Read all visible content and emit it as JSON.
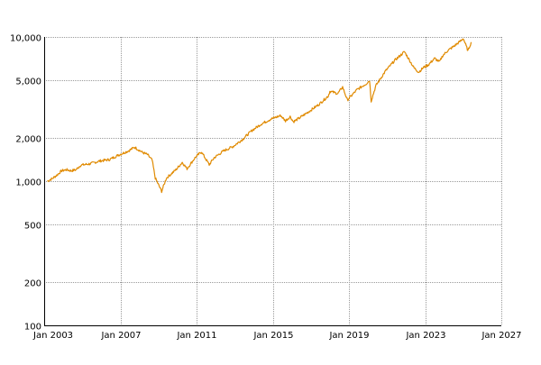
{
  "chart_data": {
    "type": "line",
    "title": "",
    "xlabel": "",
    "ylabel": "",
    "y_scale": "log",
    "xlim": [
      "2003-01",
      "2027-01"
    ],
    "ylim": [
      100,
      10000
    ],
    "grid": true,
    "x_ticks": [
      {
        "label": "Jan 2003",
        "date": "2003-01"
      },
      {
        "label": "Jan 2007",
        "date": "2007-01"
      },
      {
        "label": "Jan 2011",
        "date": "2011-01"
      },
      {
        "label": "Jan 2015",
        "date": "2015-01"
      },
      {
        "label": "Jan 2019",
        "date": "2019-01"
      },
      {
        "label": "Jan 2023",
        "date": "2023-01"
      },
      {
        "label": "Jan 2027",
        "date": "2027-01"
      }
    ],
    "y_ticks": [
      {
        "label": "100",
        "value": 100
      },
      {
        "label": "200",
        "value": 200
      },
      {
        "label": "500",
        "value": 500
      },
      {
        "label": "1,000",
        "value": 1000
      },
      {
        "label": "2,000",
        "value": 2000
      },
      {
        "label": "5,000",
        "value": 5000
      },
      {
        "label": "10,000",
        "value": 10000
      }
    ],
    "series": [
      {
        "color": "#e08a00",
        "x": [
          "2003-03",
          "2003-06",
          "2003-09",
          "2003-12",
          "2004-03",
          "2004-06",
          "2004-09",
          "2004-12",
          "2005-06",
          "2005-12",
          "2006-06",
          "2006-12",
          "2007-06",
          "2007-10",
          "2008-03",
          "2008-06",
          "2008-09",
          "2008-11",
          "2009-03",
          "2009-06",
          "2009-12",
          "2010-04",
          "2010-07",
          "2010-12",
          "2011-04",
          "2011-09",
          "2011-12",
          "2012-06",
          "2012-12",
          "2013-06",
          "2013-12",
          "2014-06",
          "2014-12",
          "2015-06",
          "2015-09",
          "2015-12",
          "2016-02",
          "2016-06",
          "2016-12",
          "2017-06",
          "2017-12",
          "2018-01",
          "2018-06",
          "2018-09",
          "2018-12",
          "2019-06",
          "2019-12",
          "2020-02",
          "2020-03",
          "2020-06",
          "2020-12",
          "2021-06",
          "2021-12",
          "2022-06",
          "2022-09",
          "2022-12",
          "2023-03",
          "2023-07",
          "2023-10",
          "2023-12",
          "2024-03",
          "2024-07",
          "2024-12",
          "2025-01",
          "2025-04",
          "2025-06"
        ],
        "y": [
          1000,
          1040,
          1100,
          1180,
          1200,
          1180,
          1200,
          1290,
          1320,
          1380,
          1410,
          1520,
          1620,
          1720,
          1580,
          1530,
          1400,
          1050,
          850,
          1050,
          1200,
          1350,
          1220,
          1450,
          1600,
          1300,
          1450,
          1620,
          1740,
          1950,
          2250,
          2500,
          2700,
          2850,
          2620,
          2800,
          2580,
          2750,
          3050,
          3400,
          3900,
          4200,
          4050,
          4500,
          3650,
          4300,
          4750,
          5000,
          3600,
          4600,
          5800,
          6900,
          7900,
          6100,
          5700,
          6150,
          6400,
          7100,
          6700,
          7400,
          8000,
          8600,
          9500,
          9800,
          8000,
          9200
        ]
      }
    ]
  }
}
